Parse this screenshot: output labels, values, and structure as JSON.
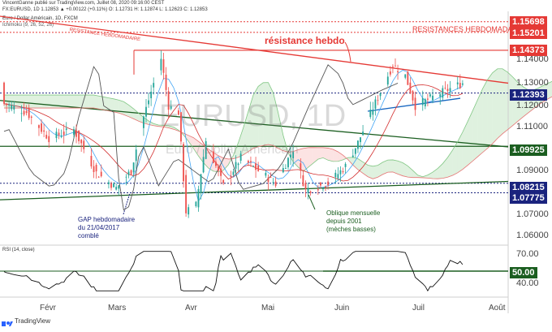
{
  "header": {
    "line1": "VincentGanne publié sur TradingView.com, Juillet 08, 2020 09:16:00 CEST",
    "line2": "FX:EURUSD, 1D  1.12853  ▲ +0.00122 (+0.11%)  O: 1.12731  H: 1.12874  L: 1.12623  C: 1.12853",
    "line3": "Euro / Dollar Américain, 1D, FXCM",
    "line4": "Ichimoku (9, 26, 52, 26)"
  },
  "watermark": {
    "symbol": "EURUSD, 1D",
    "name": "Euro / Dollar Américain"
  },
  "annotations": {
    "resistance_weekly_line": "RESISTANCE HEBDOMADAIRE",
    "resistances_weekly": "RESISTANCES HEBDOMADAIRES",
    "resistance_hebdo": "résistance hebdo",
    "gap_note": [
      "GAP hebdomadaire",
      "du 21/04/2017",
      "comblé"
    ],
    "oblique_note": [
      "Oblique mensuelle",
      "depuis 2001",
      "(mèches basses)"
    ]
  },
  "price_axis_labels": [
    "1.14000",
    "1.13000",
    "1.12000",
    "1.11000",
    "1.09000",
    "1.07000",
    "1.06000"
  ],
  "price_boxes": [
    {
      "label": "1.15698",
      "value": 1.15698,
      "color": "#e53935"
    },
    {
      "label": "1.15201",
      "value": 1.15201,
      "color": "#e53935"
    },
    {
      "label": "1.14373",
      "value": 1.14373,
      "color": "#e53935"
    },
    {
      "label": "1.12393",
      "value": 1.12393,
      "color": "#1a237e"
    },
    {
      "label": "1.09925",
      "value": 1.09925,
      "color": "#1b5e20"
    },
    {
      "label": "1.08215",
      "value": 1.08215,
      "color": "#1a237e"
    },
    {
      "label": "1.07775",
      "value": 1.07775,
      "color": "#1a237e"
    }
  ],
  "rsi": {
    "label": "RSI (14, close)",
    "axis_labels": [
      "70.00",
      "40.00"
    ],
    "level_label": "50.00"
  },
  "time_axis": [
    "Févr",
    "Mars",
    "Avr",
    "Mai",
    "Juin",
    "Juil",
    "Juil",
    "Août"
  ],
  "footer": {
    "brand": "TradingView"
  },
  "colors": {
    "up": "#26a69a",
    "down": "#ef5350",
    "resistance": "#e53935",
    "support": "#1a237e",
    "green_line": "#1b5e20"
  },
  "chart_data": {
    "type": "candlestick",
    "symbol": "EURUSD",
    "timeframe": "1D",
    "ylim": [
      1.058,
      1.161
    ],
    "close_series": [
      {
        "date": "2020-01-06",
        "close": 1.119
      },
      {
        "date": "2020-01-15",
        "close": 1.115
      },
      {
        "date": "2020-01-24",
        "close": 1.103
      },
      {
        "date": "2020-02-03",
        "close": 1.107
      },
      {
        "date": "2020-02-12",
        "close": 1.087
      },
      {
        "date": "2020-02-20",
        "close": 1.08
      },
      {
        "date": "2020-02-26",
        "close": 1.088
      },
      {
        "date": "2020-03-02",
        "close": 1.113
      },
      {
        "date": "2020-03-09",
        "close": 1.14
      },
      {
        "date": "2020-03-12",
        "close": 1.118
      },
      {
        "date": "2020-03-16",
        "close": 1.115
      },
      {
        "date": "2020-03-19",
        "close": 1.069
      },
      {
        "date": "2020-03-23",
        "close": 1.072
      },
      {
        "date": "2020-03-27",
        "close": 1.102
      },
      {
        "date": "2020-04-03",
        "close": 1.081
      },
      {
        "date": "2020-04-10",
        "close": 1.094
      },
      {
        "date": "2020-04-24",
        "close": 1.082
      },
      {
        "date": "2020-05-01",
        "close": 1.098
      },
      {
        "date": "2020-05-06",
        "close": 1.079
      },
      {
        "date": "2020-05-15",
        "close": 1.082
      },
      {
        "date": "2020-05-22",
        "close": 1.09
      },
      {
        "date": "2020-05-27",
        "close": 1.101
      },
      {
        "date": "2020-06-02",
        "close": 1.117
      },
      {
        "date": "2020-06-10",
        "close": 1.137
      },
      {
        "date": "2020-06-15",
        "close": 1.132
      },
      {
        "date": "2020-06-19",
        "close": 1.118
      },
      {
        "date": "2020-06-26",
        "close": 1.122
      },
      {
        "date": "2020-07-01",
        "close": 1.125
      },
      {
        "date": "2020-07-08",
        "close": 1.1285
      }
    ],
    "horizontal_levels": [
      1.15698,
      1.15201,
      1.14373,
      1.12393,
      1.09925,
      1.08215,
      1.07775
    ],
    "rsi_level": 50
  }
}
